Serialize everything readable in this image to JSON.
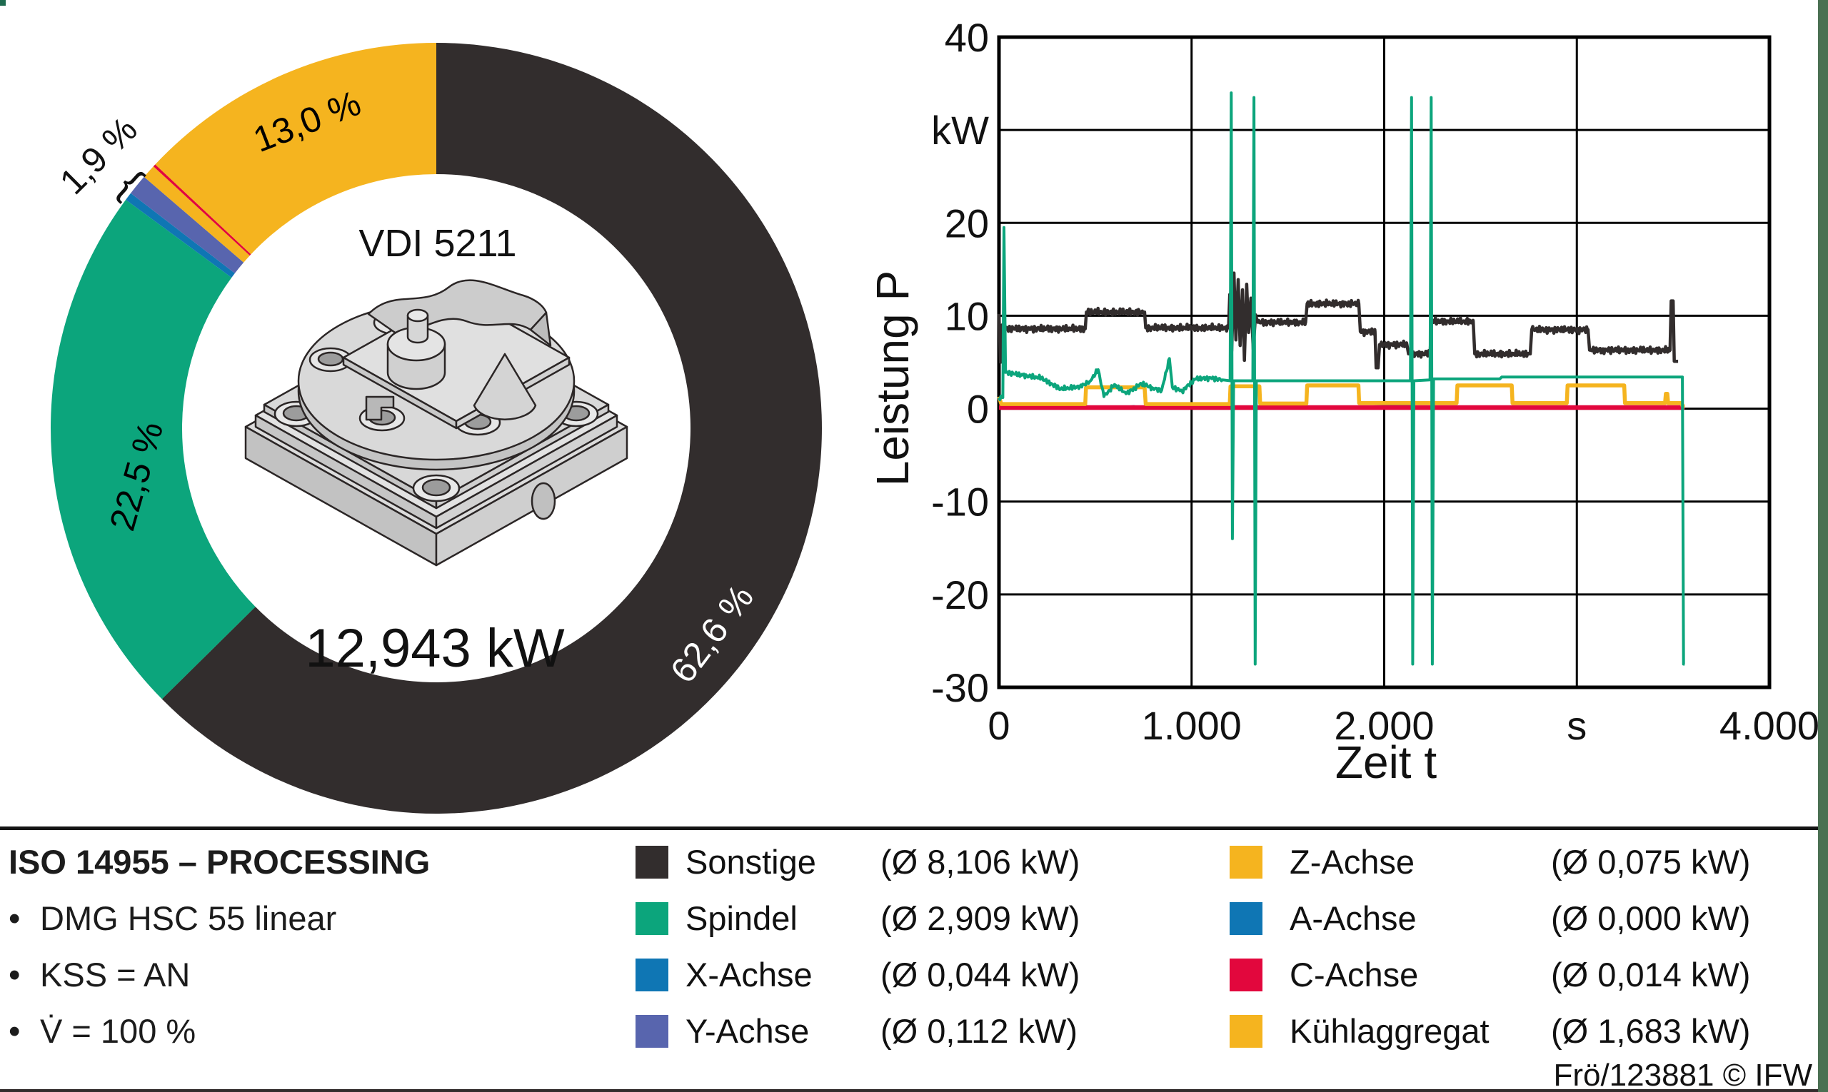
{
  "chart_data": [
    {
      "type": "pie",
      "subtype": "donut",
      "standard_label": "VDI 5211",
      "total_label": "12,943 kW",
      "group_label": "1,9 %",
      "group_brace": "{",
      "note": "donut of mean power shares, clockwise from top",
      "slices": [
        {
          "id": "sonstige",
          "name": "Sonstige",
          "pct": 62.6,
          "pct_label": "62,6 %",
          "color": "#322d2d",
          "label_color": "#ffffff"
        },
        {
          "id": "spindel",
          "name": "Spindel",
          "pct": 22.5,
          "pct_label": "22,5 %",
          "color": "#0ca57c",
          "label_color": "#000000"
        },
        {
          "id": "x-achse",
          "name": "X-Achse",
          "pct": 0.34,
          "color": "#0f76b4"
        },
        {
          "id": "y-achse",
          "name": "Y-Achse",
          "pct": 0.87,
          "color": "#5865ae"
        },
        {
          "id": "z-achse",
          "name": "Z-Achse",
          "pct": 0.58,
          "color": "#f5b41f"
        },
        {
          "id": "a-achse",
          "name": "A-Achse",
          "pct": 0.0,
          "color": "#0f76b4"
        },
        {
          "id": "c-achse",
          "name": "C-Achse",
          "pct": 0.11,
          "color": "#e2073d"
        },
        {
          "id": "kuehlaggregat",
          "name": "Kühlaggregat",
          "pct": 13.0,
          "pct_label": "13,0 %",
          "color": "#f5b41f",
          "label_color": "#000000"
        }
      ]
    },
    {
      "type": "line",
      "xlabel": "Zeit t",
      "x_unit": "s",
      "ylabel": "Leistung P",
      "y_unit": "kW",
      "xlim": [
        0,
        4000
      ],
      "ylim": [
        -30,
        40
      ],
      "grid": true,
      "xticks": [
        {
          "v": 0,
          "label": "0"
        },
        {
          "v": 1000,
          "label": "1.000"
        },
        {
          "v": 2000,
          "label": "2.000"
        },
        {
          "v": 3000,
          "label": "s"
        },
        {
          "v": 4000,
          "label": "4.000"
        }
      ],
      "yticks": [
        {
          "v": 40,
          "label": "40"
        },
        {
          "v": 30,
          "label": "kW"
        },
        {
          "v": 20,
          "label": "20"
        },
        {
          "v": 10,
          "label": "10"
        },
        {
          "v": 0,
          "label": "0"
        },
        {
          "v": -10,
          "label": "-10"
        },
        {
          "v": -20,
          "label": "-20"
        },
        {
          "v": -30,
          "label": "-30"
        }
      ],
      "series": [
        {
          "id": "y-achse",
          "name": "Y-Achse",
          "color": "#5865ae",
          "width": 2.5,
          "noise_amp": 0,
          "noise_until": 0,
          "points": [
            [
              0,
              0.1
            ],
            [
              300,
              0.14
            ],
            [
              600,
              0.07
            ],
            [
              900,
              0.16
            ],
            [
              1200,
              0.09
            ],
            [
              1600,
              0.13
            ],
            [
              2000,
              0.08
            ],
            [
              2400,
              0.14
            ],
            [
              2800,
              0.08
            ],
            [
              3200,
              0.12
            ],
            [
              3560,
              0.1
            ]
          ]
        },
        {
          "id": "x-achse",
          "name": "X-Achse",
          "color": "#0f76b4",
          "width": 2.5,
          "noise_amp": 0,
          "noise_until": 0,
          "points": [
            [
              0,
              0.06
            ],
            [
              200,
              0.1
            ],
            [
              400,
              0.05
            ],
            [
              600,
              0.12
            ],
            [
              700,
              0.28
            ],
            [
              760,
              0.08
            ],
            [
              900,
              0.3
            ],
            [
              1000,
              0.12
            ],
            [
              1150,
              0.2
            ],
            [
              1200,
              0.45
            ],
            [
              1215,
              0.08
            ],
            [
              1500,
              0.1
            ],
            [
              1800,
              0.15
            ],
            [
              2140,
              0.4
            ],
            [
              2160,
              0.08
            ],
            [
              2500,
              0.12
            ],
            [
              2900,
              0.08
            ],
            [
              3200,
              0.12
            ],
            [
              3560,
              0.07
            ]
          ]
        },
        {
          "id": "c-achse",
          "name": "C-Achse",
          "color": "#e2073d",
          "width": 6.5,
          "noise_amp": 0,
          "noise_until": 0,
          "points": [
            [
              0,
              0.12
            ],
            [
              3560,
              0.12
            ]
          ]
        },
        {
          "id": "kuehlaggregat",
          "name": "Kühlaggregat",
          "color": "#f5b41f",
          "width": 5.5,
          "noise_amp": 0,
          "noise_until": 0,
          "points": [
            [
              0,
              1.3
            ],
            [
              12,
              0.5
            ],
            [
              448,
              0.5
            ],
            [
              452,
              2.3
            ],
            [
              756,
              2.3
            ],
            [
              762,
              0.5
            ],
            [
              1198,
              0.5
            ],
            [
              1202,
              2.4
            ],
            [
              1352,
              2.4
            ],
            [
              1356,
              0.55
            ],
            [
              1596,
              0.55
            ],
            [
              1600,
              2.5
            ],
            [
              1866,
              2.5
            ],
            [
              1870,
              0.6
            ],
            [
              2376,
              0.6
            ],
            [
              2380,
              2.5
            ],
            [
              2662,
              2.5
            ],
            [
              2666,
              0.6
            ],
            [
              2948,
              0.6
            ],
            [
              2952,
              2.5
            ],
            [
              3246,
              2.5
            ],
            [
              3250,
              0.6
            ],
            [
              3458,
              0.6
            ],
            [
              3462,
              1.6
            ],
            [
              3470,
              1.6
            ],
            [
              3474,
              0.6
            ],
            [
              3544,
              0.6
            ],
            [
              3550,
              0.25
            ],
            [
              3560,
              0.25
            ]
          ]
        },
        {
          "id": "sonstige",
          "name": "Sonstige",
          "color": "#322d2d",
          "width": 4.5,
          "noise_amp": 0.42,
          "noise_until": 3430,
          "points": [
            [
              0,
              10.2
            ],
            [
              8,
              5.0
            ],
            [
              16,
              9.0
            ],
            [
              24,
              8.6
            ],
            [
              448,
              8.6
            ],
            [
              454,
              10.4
            ],
            [
              756,
              10.4
            ],
            [
              762,
              8.7
            ],
            [
              1192,
              8.7
            ],
            [
              1198,
              12.3
            ],
            [
              1208,
              6.2
            ],
            [
              1220,
              14.6
            ],
            [
              1230,
              7.4
            ],
            [
              1242,
              13.9
            ],
            [
              1252,
              6.8
            ],
            [
              1264,
              12.8
            ],
            [
              1274,
              5.2
            ],
            [
              1286,
              13.4
            ],
            [
              1296,
              8.2
            ],
            [
              1308,
              11.9
            ],
            [
              1320,
              6.4
            ],
            [
              1332,
              10.1
            ],
            [
              1344,
              9.3
            ],
            [
              1592,
              9.3
            ],
            [
              1600,
              11.3
            ],
            [
              1868,
              11.3
            ],
            [
              1876,
              8.3
            ],
            [
              1952,
              8.3
            ],
            [
              1958,
              4.4
            ],
            [
              1968,
              4.4
            ],
            [
              1976,
              6.9
            ],
            [
              2118,
              6.9
            ],
            [
              2126,
              5.9
            ],
            [
              2238,
              5.9
            ],
            [
              2246,
              9.4
            ],
            [
              2462,
              9.4
            ],
            [
              2470,
              5.9
            ],
            [
              2758,
              5.9
            ],
            [
              2766,
              8.5
            ],
            [
              3058,
              8.5
            ],
            [
              3066,
              6.3
            ],
            [
              3484,
              6.3
            ],
            [
              3490,
              11.6
            ],
            [
              3500,
              11.6
            ],
            [
              3506,
              5.1
            ],
            [
              3526,
              5.1
            ]
          ]
        },
        {
          "id": "spindel",
          "name": "Spindel",
          "color": "#0ca57c",
          "width": 4,
          "noise_amp": 0.3,
          "noise_until": 1160,
          "points": [
            [
              0,
              1.2
            ],
            [
              20,
              1.2
            ],
            [
              26,
              19.5
            ],
            [
              34,
              3.9
            ],
            [
              120,
              3.6
            ],
            [
              220,
              3.3
            ],
            [
              320,
              2.1
            ],
            [
              420,
              2.4
            ],
            [
              470,
              2.9
            ],
            [
              515,
              4.2
            ],
            [
              545,
              1.3
            ],
            [
              600,
              2.6
            ],
            [
              660,
              1.6
            ],
            [
              740,
              2.7
            ],
            [
              800,
              2.2
            ],
            [
              845,
              2.0
            ],
            [
              885,
              5.4
            ],
            [
              900,
              2.3
            ],
            [
              950,
              1.9
            ],
            [
              1020,
              3.2
            ],
            [
              1100,
              3.3
            ],
            [
              1160,
              3.1
            ],
            [
              1200,
              3.0
            ],
            [
              1206,
              34.0
            ],
            [
              1212,
              -14.0
            ],
            [
              1218,
              3.0
            ],
            [
              1318,
              3.0
            ],
            [
              1324,
              33.5
            ],
            [
              1330,
              -27.5
            ],
            [
              1336,
              3.0
            ],
            [
              2136,
              3.0
            ],
            [
              2142,
              33.5
            ],
            [
              2148,
              -27.5
            ],
            [
              2154,
              3.0
            ],
            [
              2238,
              3.1
            ],
            [
              2244,
              33.5
            ],
            [
              2250,
              -27.5
            ],
            [
              2256,
              3.2
            ],
            [
              2600,
              3.2
            ],
            [
              2610,
              3.4
            ],
            [
              3548,
              3.4
            ],
            [
              3554,
              -27.5
            ],
            [
              3560,
              -27.5
            ]
          ]
        }
      ]
    }
  ],
  "info": {
    "title": "ISO 14955 – PROCESSING",
    "bullet_marker": "•",
    "bullets": [
      "DMG HSC 55 linear",
      "KSS = AN",
      "V̇ = 100 %"
    ]
  },
  "legend": {
    "columns": [
      [
        {
          "color": "#322d2d",
          "label": "Sonstige",
          "value": "(Ø 8,106 kW)"
        },
        {
          "color": "#0ca57c",
          "label": "Spindel",
          "value": "(Ø 2,909 kW)"
        },
        {
          "color": "#0f76b4",
          "label": "X-Achse",
          "value": "(Ø 0,044 kW)"
        },
        {
          "color": "#5865ae",
          "label": "Y-Achse",
          "value": "(Ø 0,112 kW)"
        }
      ],
      [
        {
          "color": "#f5b41f",
          "label": "Z-Achse",
          "value": "(Ø 0,075 kW)"
        },
        {
          "color": "#0f76b4",
          "label": "A-Achse",
          "value": "(Ø 0,000 kW)"
        },
        {
          "color": "#e2073d",
          "label": "C-Achse",
          "value": "(Ø 0,014 kW)"
        },
        {
          "color": "#f5b41f",
          "label": "Kühlaggregat",
          "value": "(Ø 1,683 kW)"
        }
      ]
    ]
  },
  "credit": "Frö/123881 © IFW"
}
